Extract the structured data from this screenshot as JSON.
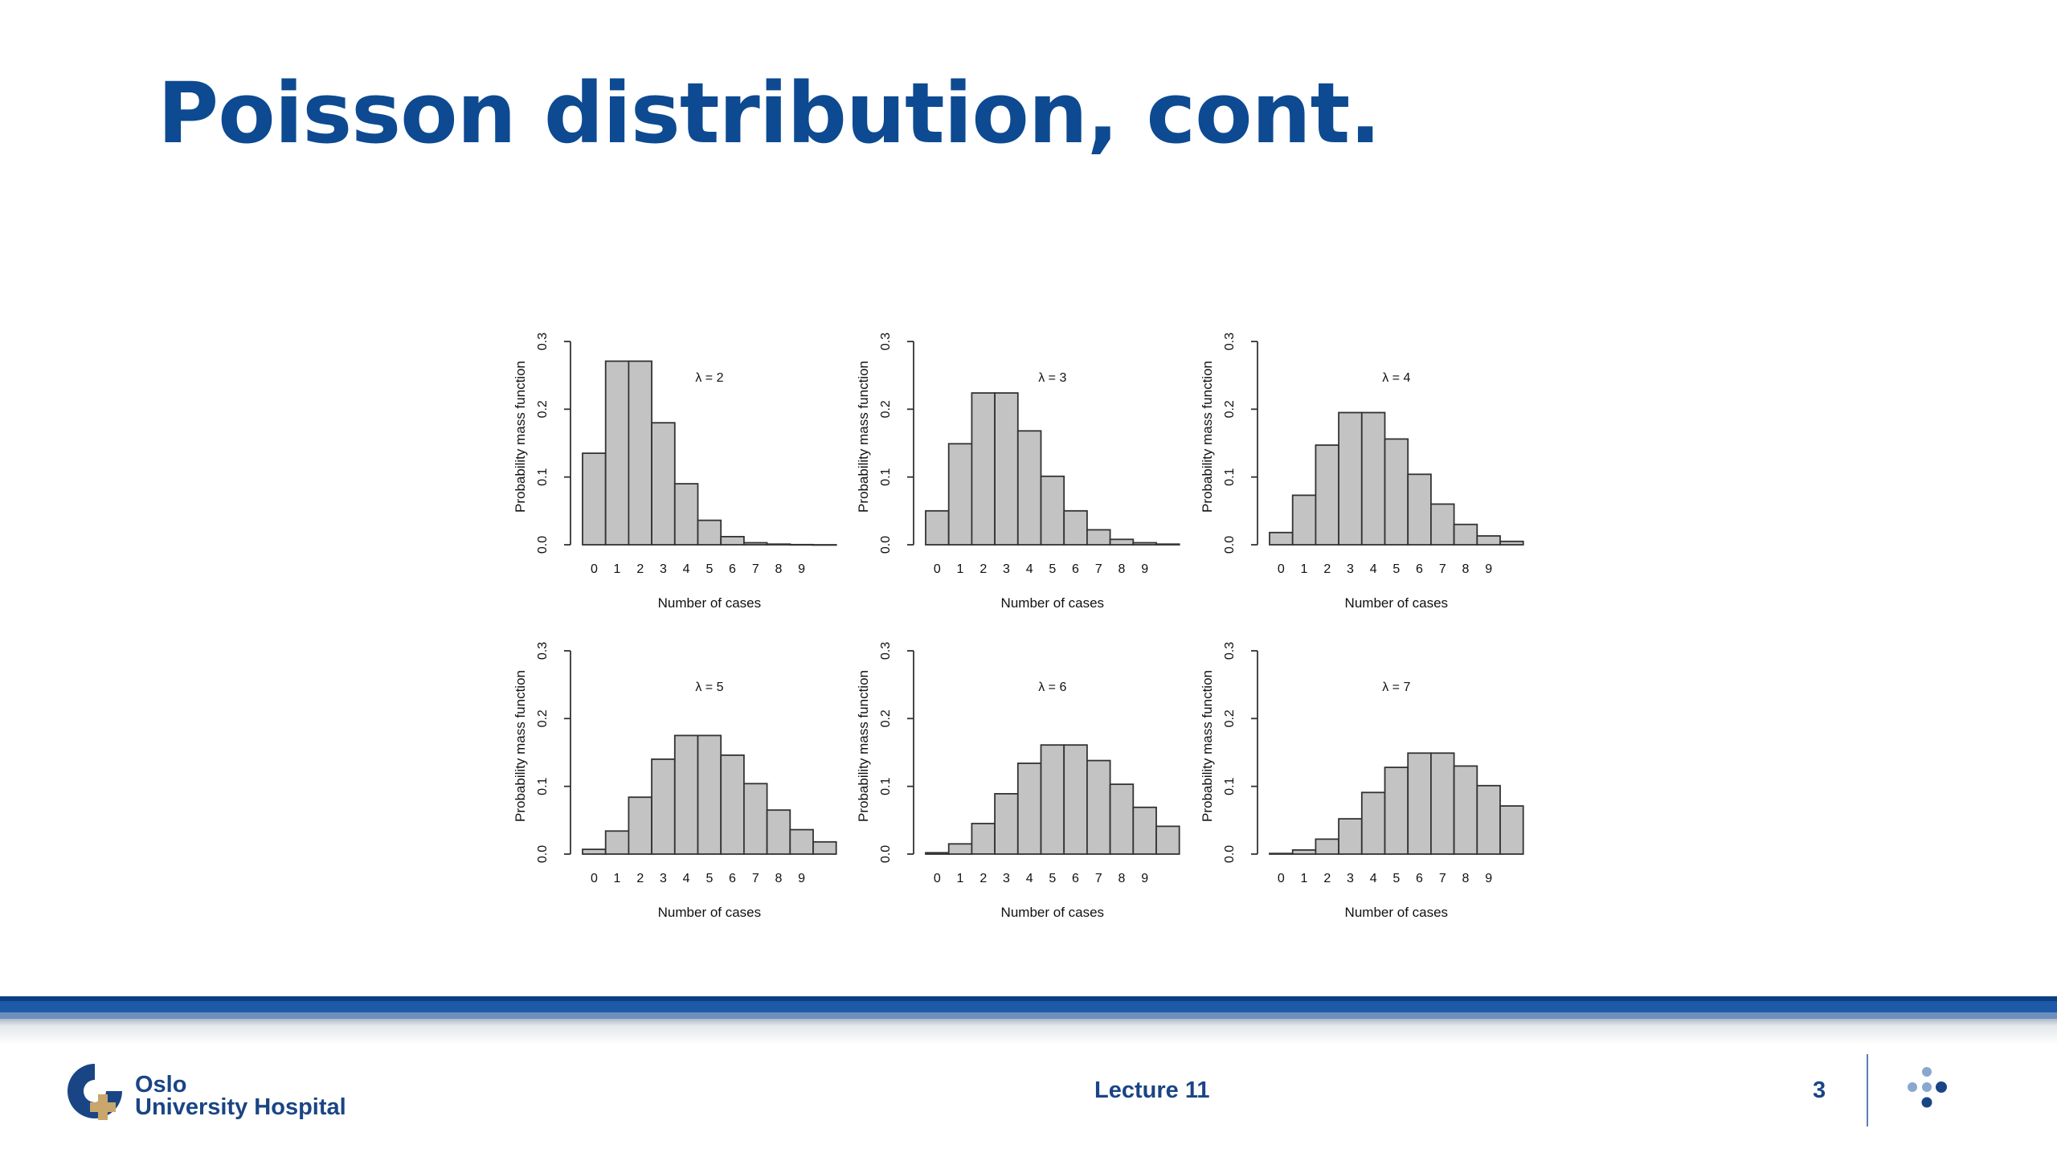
{
  "slide": {
    "title": "Poisson distribution, cont."
  },
  "chart_data": [
    {
      "type": "bar",
      "annotation": "λ = 2",
      "xlabel": "Number of cases",
      "ylabel": "Probability mass function",
      "categories": [
        "0",
        "1",
        "2",
        "3",
        "4",
        "5",
        "6",
        "7",
        "8",
        "9",
        "10"
      ],
      "tick_labels": [
        "0",
        "1",
        "2",
        "3",
        "4",
        "5",
        "6",
        "7",
        "8",
        "9"
      ],
      "values": [
        0.135,
        0.271,
        0.271,
        0.18,
        0.09,
        0.036,
        0.012,
        0.003,
        0.001,
        0.0002,
        0.0
      ],
      "ylim": [
        0,
        0.3
      ],
      "yticks": [
        "0.0",
        "0.1",
        "0.2",
        "0.3"
      ],
      "grid": false
    },
    {
      "type": "bar",
      "annotation": "λ = 3",
      "xlabel": "Number of cases",
      "ylabel": "Probability mass function",
      "categories": [
        "0",
        "1",
        "2",
        "3",
        "4",
        "5",
        "6",
        "7",
        "8",
        "9",
        "10"
      ],
      "tick_labels": [
        "0",
        "1",
        "2",
        "3",
        "4",
        "5",
        "6",
        "7",
        "8",
        "9"
      ],
      "values": [
        0.05,
        0.149,
        0.224,
        0.224,
        0.168,
        0.101,
        0.05,
        0.022,
        0.008,
        0.003,
        0.001
      ],
      "ylim": [
        0,
        0.3
      ],
      "yticks": [
        "0.0",
        "0.1",
        "0.2",
        "0.3"
      ],
      "grid": false
    },
    {
      "type": "bar",
      "annotation": "λ = 4",
      "xlabel": "Number of cases",
      "ylabel": "Probability mass function",
      "categories": [
        "0",
        "1",
        "2",
        "3",
        "4",
        "5",
        "6",
        "7",
        "8",
        "9",
        "10"
      ],
      "tick_labels": [
        "0",
        "1",
        "2",
        "3",
        "4",
        "5",
        "6",
        "7",
        "8",
        "9"
      ],
      "values": [
        0.018,
        0.073,
        0.147,
        0.195,
        0.195,
        0.156,
        0.104,
        0.06,
        0.03,
        0.013,
        0.005
      ],
      "ylim": [
        0,
        0.3
      ],
      "yticks": [
        "0.0",
        "0.1",
        "0.2",
        "0.3"
      ],
      "grid": false
    },
    {
      "type": "bar",
      "annotation": "λ = 5",
      "xlabel": "Number of cases",
      "ylabel": "Probability mass function",
      "categories": [
        "0",
        "1",
        "2",
        "3",
        "4",
        "5",
        "6",
        "7",
        "8",
        "9",
        "10"
      ],
      "tick_labels": [
        "0",
        "1",
        "2",
        "3",
        "4",
        "5",
        "6",
        "7",
        "8",
        "9"
      ],
      "values": [
        0.007,
        0.034,
        0.084,
        0.14,
        0.175,
        0.175,
        0.146,
        0.104,
        0.065,
        0.036,
        0.018
      ],
      "ylim": [
        0,
        0.3
      ],
      "yticks": [
        "0.0",
        "0.1",
        "0.2",
        "0.3"
      ],
      "grid": false
    },
    {
      "type": "bar",
      "annotation": "λ = 6",
      "xlabel": "Number of cases",
      "ylabel": "Probability mass function",
      "categories": [
        "0",
        "1",
        "2",
        "3",
        "4",
        "5",
        "6",
        "7",
        "8",
        "9",
        "10"
      ],
      "tick_labels": [
        "0",
        "1",
        "2",
        "3",
        "4",
        "5",
        "6",
        "7",
        "8",
        "9"
      ],
      "values": [
        0.002,
        0.015,
        0.045,
        0.089,
        0.134,
        0.161,
        0.161,
        0.138,
        0.103,
        0.069,
        0.041
      ],
      "ylim": [
        0,
        0.3
      ],
      "yticks": [
        "0.0",
        "0.1",
        "0.2",
        "0.3"
      ],
      "grid": false
    },
    {
      "type": "bar",
      "annotation": "λ = 7",
      "xlabel": "Number of cases",
      "ylabel": "Probability mass function",
      "categories": [
        "0",
        "1",
        "2",
        "3",
        "4",
        "5",
        "6",
        "7",
        "8",
        "9",
        "10"
      ],
      "tick_labels": [
        "0",
        "1",
        "2",
        "3",
        "4",
        "5",
        "6",
        "7",
        "8",
        "9"
      ],
      "values": [
        0.001,
        0.006,
        0.022,
        0.052,
        0.091,
        0.128,
        0.149,
        0.149,
        0.13,
        0.101,
        0.071
      ],
      "ylim": [
        0,
        0.3
      ],
      "yticks": [
        "0.0",
        "0.1",
        "0.2",
        "0.3"
      ],
      "grid": false
    }
  ],
  "footer": {
    "logo_line1": "Oslo",
    "logo_line2": "University Hospital",
    "lecture": "Lecture 11",
    "page_number": "3",
    "menu_icon": "dots-icon"
  },
  "colors": {
    "title": "#0d4a91",
    "bar_fill": "#c3c3c3",
    "footer_text": "#1a4585"
  }
}
